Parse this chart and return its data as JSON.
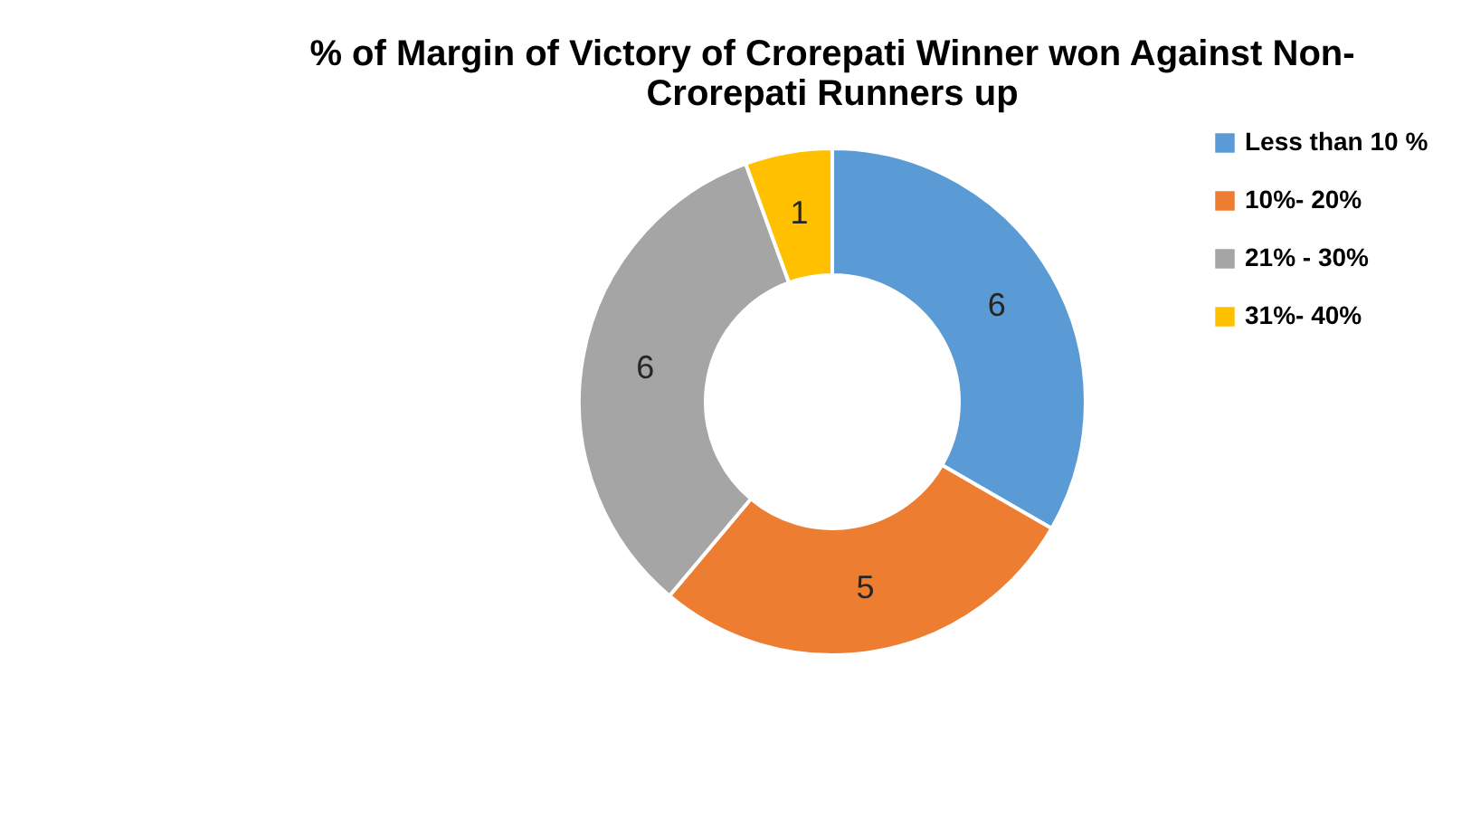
{
  "chart_data": {
    "type": "donut",
    "title": "% of Margin of Victory of Crorepati Winner won Against Non-Crorepati Runners up",
    "categories": [
      "Less than 10 %",
      "10%- 20%",
      "21% - 30%",
      "31%- 40%"
    ],
    "values": [
      6,
      5,
      6,
      1
    ],
    "colors": [
      "#5b9bd5",
      "#ed7d31",
      "#a5a5a5",
      "#ffc000"
    ],
    "data_labels": true,
    "legend": "right"
  }
}
